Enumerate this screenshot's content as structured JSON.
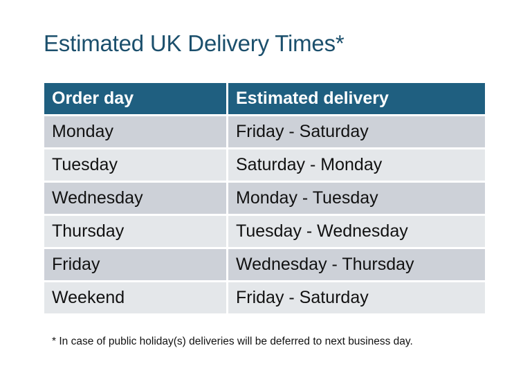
{
  "title": "Estimated UK Delivery Times*",
  "colors": {
    "title": "#1b4f6c",
    "header_bg": "#1f5f80",
    "row_odd": "#cdd1d8",
    "row_even": "#e4e7ea"
  },
  "table": {
    "headers": [
      "Order day",
      "Estimated delivery"
    ],
    "rows": [
      [
        "Monday",
        "Friday - Saturday"
      ],
      [
        "Tuesday",
        "Saturday - Monday"
      ],
      [
        "Wednesday",
        "Monday - Tuesday"
      ],
      [
        "Thursday",
        "Tuesday - Wednesday"
      ],
      [
        "Friday",
        "Wednesday - Thursday"
      ],
      [
        "Weekend",
        "Friday - Saturday"
      ]
    ]
  },
  "footnote": "* In case of public holiday(s) deliveries will be deferred to next business day."
}
